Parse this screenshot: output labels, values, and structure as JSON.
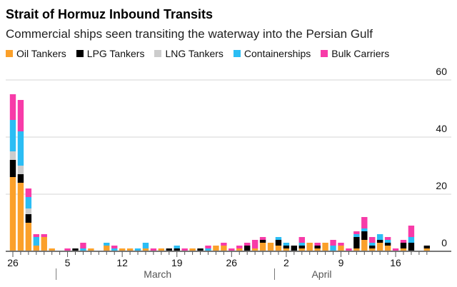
{
  "chart_data": {
    "type": "bar",
    "stacked": true,
    "title": "Strait of Hormuz Inbound Transits",
    "subtitle": "Commercial ships seen transiting the waterway into the Persian Gulf",
    "categories": [
      "Feb 26",
      "Feb 27",
      "Feb 28",
      "Mar 1",
      "Mar 2",
      "Mar 3",
      "Mar 4",
      "Mar 5",
      "Mar 6",
      "Mar 7",
      "Mar 8",
      "Mar 9",
      "Mar 10",
      "Mar 11",
      "Mar 12",
      "Mar 13",
      "Mar 14",
      "Mar 15",
      "Mar 16",
      "Mar 17",
      "Mar 18",
      "Mar 19",
      "Mar 20",
      "Mar 21",
      "Mar 22",
      "Mar 23",
      "Mar 24",
      "Mar 25",
      "Mar 26",
      "Mar 27",
      "Mar 28",
      "Mar 29",
      "Mar 30",
      "Mar 31",
      "Apr 1",
      "Apr 2",
      "Apr 3",
      "Apr 4",
      "Apr 5",
      "Apr 6",
      "Apr 7",
      "Apr 8",
      "Apr 9",
      "Apr 10",
      "Apr 11",
      "Apr 12",
      "Apr 13",
      "Apr 14",
      "Apr 15",
      "Apr 16",
      "Apr 17",
      "Apr 18",
      "Apr 19",
      "Apr 20"
    ],
    "series": [
      {
        "name": "Oil Tankers",
        "color": "#fba02a",
        "values": [
          26,
          24,
          10,
          2,
          5,
          1,
          0,
          0,
          0,
          0,
          1,
          0,
          2,
          0,
          1,
          1,
          0,
          1,
          0,
          1,
          0,
          0,
          0,
          1,
          0,
          0,
          2,
          2,
          0,
          1,
          0,
          1,
          3,
          3,
          2,
          1,
          0,
          1,
          3,
          1,
          3,
          0,
          2,
          0,
          1,
          4,
          1,
          3,
          2,
          0,
          1,
          0,
          0,
          1
        ]
      },
      {
        "name": "LPG Tankers",
        "color": "#000000",
        "values": [
          6,
          3,
          3,
          0,
          0,
          0,
          0,
          0,
          1,
          0,
          0,
          0,
          0,
          0,
          0,
          0,
          0,
          0,
          0,
          0,
          1,
          1,
          0,
          0,
          1,
          0,
          0,
          0,
          0,
          0,
          2,
          0,
          1,
          0,
          2,
          1,
          2,
          1,
          0,
          1,
          0,
          0,
          0,
          0,
          4,
          3,
          1,
          1,
          1,
          0,
          2,
          3,
          0,
          1
        ]
      },
      {
        "name": "LNG Tankers",
        "color": "#cccccc",
        "values": [
          3,
          3,
          2,
          0,
          0,
          0,
          0,
          0,
          0,
          0,
          0,
          0,
          0,
          0,
          0,
          0,
          0,
          0,
          0,
          0,
          0,
          0,
          0,
          0,
          0,
          0,
          0,
          0,
          0,
          0,
          0,
          0,
          0,
          0,
          0,
          0,
          0,
          0,
          0,
          0,
          0,
          0,
          0,
          0,
          0,
          0,
          0,
          0,
          0,
          0,
          0,
          0,
          0,
          0
        ]
      },
      {
        "name": "Containerships",
        "color": "#2bbdf4",
        "values": [
          11,
          12,
          4,
          3,
          0,
          0,
          0,
          0,
          0,
          1,
          0,
          0,
          1,
          1,
          0,
          0,
          1,
          2,
          0,
          0,
          0,
          1,
          0,
          0,
          0,
          1,
          0,
          0,
          0,
          0,
          0,
          0,
          0,
          0,
          1,
          1,
          0,
          1,
          0,
          0,
          0,
          2,
          0,
          0,
          1,
          1,
          1,
          2,
          1,
          0,
          0,
          2,
          0,
          0
        ]
      },
      {
        "name": "Bulk Carriers",
        "color": "#f73ba8",
        "values": [
          9,
          11,
          3,
          1,
          1,
          0,
          0,
          1,
          0,
          2,
          0,
          0,
          0,
          1,
          0,
          0,
          0,
          0,
          1,
          0,
          0,
          0,
          1,
          0,
          0,
          1,
          0,
          1,
          1,
          1,
          1,
          3,
          1,
          0,
          0,
          0,
          0,
          2,
          0,
          1,
          0,
          2,
          1,
          1,
          1,
          4,
          2,
          0,
          1,
          1,
          1,
          4,
          0,
          0
        ]
      }
    ],
    "ylim": [
      0,
      60
    ],
    "y_ticks": [
      "0",
      "20",
      "40",
      "60"
    ],
    "x_ticks": [
      {
        "label": "26",
        "category": "Feb 26"
      },
      {
        "label": "5",
        "category": "Mar 5"
      },
      {
        "label": "12",
        "category": "Mar 12"
      },
      {
        "label": "19",
        "category": "Mar 19"
      },
      {
        "label": "26",
        "category": "Mar 26"
      },
      {
        "label": "2",
        "category": "Apr 2"
      },
      {
        "label": "9",
        "category": "Apr 9"
      },
      {
        "label": "16",
        "category": "Apr 16"
      }
    ],
    "month_labels": [
      {
        "label": "March",
        "category": "Mar 19"
      },
      {
        "label": "April",
        "category": "Apr 9"
      }
    ],
    "grid": true,
    "legend_position": "top-left"
  }
}
